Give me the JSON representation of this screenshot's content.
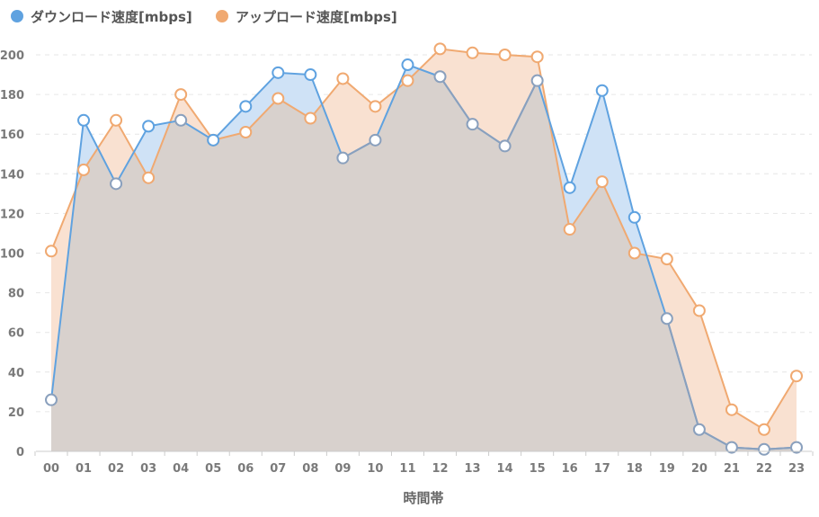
{
  "chart_data": {
    "type": "area",
    "title": "",
    "xlabel": "時間帯",
    "ylabel": "",
    "ylim": [
      0,
      200
    ],
    "yticks": [
      0,
      20,
      40,
      60,
      80,
      100,
      120,
      140,
      160,
      180,
      200
    ],
    "grid": true,
    "legend_position": "top-left",
    "categories": [
      "00",
      "01",
      "02",
      "03",
      "04",
      "05",
      "06",
      "07",
      "08",
      "09",
      "10",
      "11",
      "12",
      "13",
      "14",
      "15",
      "16",
      "17",
      "18",
      "19",
      "20",
      "21",
      "22",
      "23"
    ],
    "series": [
      {
        "name": "ダウンロード速度[mbps]",
        "color": "#5fa2e0",
        "fill": "#cfe2f6",
        "values": [
          26,
          167,
          135,
          164,
          167,
          157,
          174,
          191,
          190,
          148,
          157,
          195,
          189,
          165,
          154,
          187,
          133,
          182,
          118,
          67,
          11,
          2,
          1,
          2
        ]
      },
      {
        "name": "アップロード速度[mbps]",
        "color": "#f0a971",
        "fill": "#f9e1d1",
        "values": [
          101,
          142,
          167,
          138,
          180,
          157,
          161,
          178,
          168,
          188,
          174,
          187,
          203,
          201,
          200,
          199,
          112,
          136,
          100,
          97,
          71,
          21,
          11,
          38
        ]
      }
    ],
    "overlap_fill": "#d8d1cd"
  }
}
